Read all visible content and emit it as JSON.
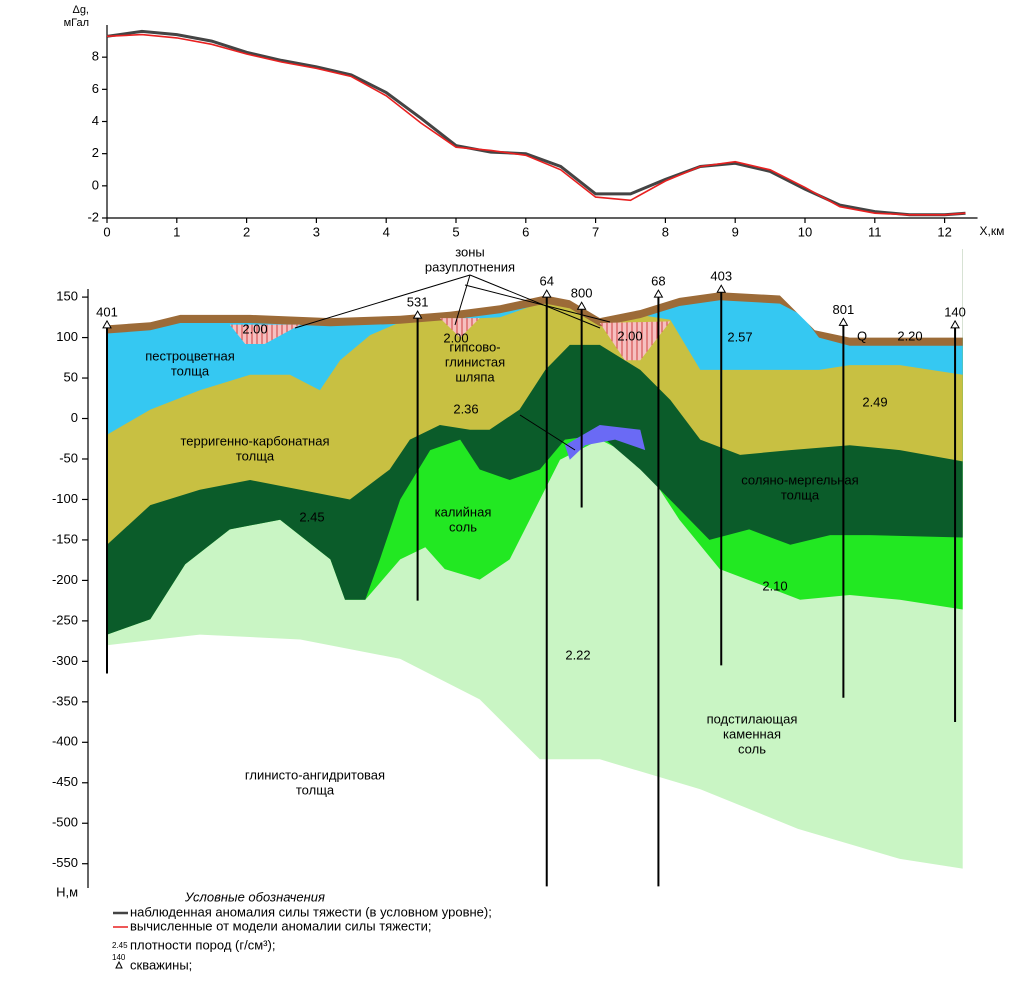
{
  "chart_data": [
    {
      "type": "line",
      "y_label": [
        "Δg,",
        "мГал"
      ],
      "x_label": "X,км",
      "x": [
        0,
        0.5,
        1,
        1.5,
        2,
        2.5,
        3,
        3.5,
        4,
        4.5,
        5,
        5.5,
        6,
        6.5,
        7,
        7.5,
        8,
        8.5,
        9,
        9.5,
        10,
        10.5,
        11,
        11.5,
        12,
        12.3
      ],
      "series": [
        {
          "name": "наблюденная аномалия силы тяжести (в условном уровне);",
          "color": "#444444",
          "values": [
            9.3,
            9.6,
            9.4,
            9.0,
            8.3,
            7.8,
            7.4,
            6.9,
            5.8,
            4.2,
            2.5,
            2.1,
            2.0,
            1.2,
            -0.5,
            -0.5,
            0.4,
            1.2,
            1.4,
            0.9,
            -0.2,
            -1.2,
            -1.6,
            -1.8,
            -1.8,
            -1.7
          ]
        },
        {
          "name": "вычисленные от модели аномалии силы тяжести;",
          "color": "#e82020",
          "values": [
            9.3,
            9.4,
            9.2,
            8.8,
            8.2,
            7.7,
            7.3,
            6.8,
            5.6,
            3.9,
            2.4,
            2.2,
            1.9,
            1.0,
            -0.7,
            -0.9,
            0.3,
            1.2,
            1.5,
            1.0,
            -0.1,
            -1.3,
            -1.7,
            -1.8,
            -1.8,
            -1.7
          ]
        }
      ],
      "xlim": [
        0,
        12.3
      ],
      "xticks": [
        0,
        1,
        2,
        3,
        4,
        5,
        6,
        7,
        8,
        9,
        10,
        11,
        12
      ],
      "ylim": [
        -2,
        10
      ],
      "yticks": [
        -2,
        0,
        2,
        4,
        6,
        8
      ]
    },
    {
      "type": "section",
      "y_label": "Н,м",
      "xlim": [
        0,
        12.3
      ],
      "ylim": [
        -580,
        160
      ],
      "yticks": [
        150,
        100,
        50,
        0,
        -50,
        -100,
        -150,
        -200,
        -250,
        -300,
        -350,
        -400,
        -450,
        -500,
        -550
      ],
      "layers": [
        {
          "color": "#c9f5c4",
          "x": [
            0,
            1.33,
            2.77,
            4.2,
            5.34,
            6.2,
            7.06,
            8.5,
            9.9,
            11.36,
            12.26
          ],
          "y": [
            -280,
            -267,
            -273,
            -297,
            -347,
            -421,
            -421,
            -458,
            -507,
            -544,
            -556
          ]
        },
        {
          "color": "#22e822",
          "x": [
            0,
            0.62,
            1.12,
            1.76,
            2.48,
            3.2,
            3.41,
            3.7,
            4.2,
            4.56,
            4.84,
            5.34,
            5.77,
            6.49,
            7.06,
            7.64,
            8.2,
            8.78,
            9.36,
            9.93,
            10.64,
            11.36,
            12.26
          ],
          "y": [
            -267,
            -248,
            -180,
            -137,
            -125,
            -174,
            -224,
            -224,
            -174,
            -159,
            -186,
            -199,
            -174,
            -51,
            -26,
            -51,
            -125,
            -186,
            -205,
            -224,
            -218,
            -224,
            -236
          ]
        },
        {
          "color": "#0b5c2a",
          "x": [
            0,
            0.62,
            1.12,
            1.76,
            2.48,
            3.2,
            3.41,
            3.7,
            3.91,
            4.2,
            4.63,
            5.06,
            5.34,
            5.77,
            6.2,
            6.56,
            7.06,
            7.64,
            8.2,
            8.63,
            9.2,
            9.79,
            10.36,
            10.93,
            12.26
          ],
          "y": [
            -267,
            -248,
            -180,
            -137,
            -125,
            -174,
            -224,
            -224,
            -174,
            -100,
            -39,
            -26,
            -63,
            -76,
            -63,
            -26,
            -20,
            -63,
            -112,
            -150,
            -137,
            -156,
            -144,
            -144,
            -147
          ]
        },
        {
          "color": "#c8c042",
          "x": [
            0,
            0.62,
            1.33,
            2.05,
            2.77,
            3.48,
            4.05,
            4.34,
            4.77,
            5.2,
            5.48,
            5.91,
            6.28,
            6.63,
            7.06,
            7.64,
            8.07,
            8.5,
            9.07,
            9.79,
            10.64,
            11.36,
            12.26
          ],
          "y": [
            -156,
            -107,
            -88,
            -76,
            -88,
            -100,
            -63,
            -26,
            -8,
            -14,
            -14,
            11,
            60,
            91,
            91,
            60,
            23,
            -26,
            -45,
            -39,
            -33,
            -39,
            -53
          ]
        },
        {
          "color": "#35c8f2",
          "x": [
            0,
            0.62,
            1.33,
            2.05,
            2.62,
            3.05,
            3.34,
            3.77,
            4.2,
            4.91,
            5.63,
            6.28,
            6.63,
            7.06,
            7.64,
            8.07,
            8.5,
            9.07,
            9.64,
            10.2,
            10.64,
            11.36,
            12.26
          ],
          "y": [
            -20,
            11,
            35,
            54,
            54,
            35,
            72,
            103,
            119,
            122,
            125,
            145,
            140,
            118,
            128,
            122,
            60,
            60,
            60,
            60,
            66,
            66,
            54
          ]
        },
        {
          "color": "#9c6b38",
          "x": [
            0,
            0.62,
            1.05,
            2.05,
            3.2,
            4.2,
            4.91,
            5.63,
            6.28,
            6.63,
            7.06,
            7.64,
            8.2,
            8.78,
            9.64,
            9.95,
            10.2,
            10.64,
            12.26
          ],
          "y": [
            105,
            109,
            118,
            118,
            114,
            117,
            122,
            130,
            142,
            136,
            114,
            124,
            139,
            146,
            142,
            128,
            100,
            90,
            90
          ]
        },
        {
          "color": "#ffffff",
          "x": [
            0,
            0.62,
            1.05,
            2.05,
            3.2,
            4.2,
            4.91,
            5.63,
            6.28,
            6.63,
            7.06,
            7.64,
            8.2,
            8.78,
            9.64,
            10.14,
            10.64,
            12.26
          ],
          "y": [
            115,
            119,
            128,
            128,
            124,
            127,
            132,
            140,
            152,
            146,
            124,
            134,
            149,
            156,
            152,
            109,
            100,
            100
          ]
        }
      ],
      "patches": [
        {
          "color": "#f6c0c0",
          "x": [
            1.76,
            2.77,
            2.26,
            1.98
          ],
          "y": [
            116,
            116,
            92,
            92
          ]
        },
        {
          "color": "#f6c0c0",
          "x": [
            4.77,
            5.34,
            5.06
          ],
          "y": [
            124,
            124,
            100
          ]
        },
        {
          "color": "#f6c0c0",
          "x": [
            7.06,
            8.07,
            7.64,
            7.42
          ],
          "y": [
            118,
            120,
            72,
            72
          ]
        },
        {
          "color": "#6a6af5",
          "x": [
            6.56,
            7.06,
            7.64,
            7.71,
            7.28,
            6.85,
            6.63
          ],
          "y": [
            -33,
            -8,
            -14,
            -39,
            -26,
            -33,
            -51
          ]
        }
      ],
      "wells": [
        {
          "label": "401",
          "x": 0,
          "top": 112,
          "bottom": -315
        },
        {
          "label": "531",
          "x": 4.45,
          "top": 124,
          "bottom": -225
        },
        {
          "label": "64",
          "x": 6.3,
          "top": 150,
          "bottom": -578
        },
        {
          "label": "800",
          "x": 6.8,
          "top": 135,
          "bottom": -110
        },
        {
          "label": "68",
          "x": 7.9,
          "top": 150,
          "bottom": -578
        },
        {
          "label": "403",
          "x": 8.8,
          "top": 156,
          "bottom": -305
        },
        {
          "label": "801",
          "x": 10.55,
          "top": 115,
          "bottom": -345
        },
        {
          "label": "140",
          "x": 12.15,
          "top": 112,
          "bottom": -375
        }
      ],
      "annotations": [
        [
          "зоны",
          "разуплотнения"
        ],
        [
          "пестроцветная",
          "толща"
        ],
        [
          "2.00"
        ],
        [
          "2.00"
        ],
        [
          "2.00"
        ],
        [
          "гипсово-",
          "глинистая",
          "шляпа"
        ],
        [
          "2.36"
        ],
        [
          "2.57"
        ],
        [
          "Q"
        ],
        [
          "2.20"
        ],
        [
          "2.49"
        ],
        [
          "терригенно-карбонатная",
          "толща"
        ],
        [
          "соляно-мергельная",
          "толща"
        ],
        [
          "2.45"
        ],
        [
          "калийная",
          "соль"
        ],
        [
          "2.10"
        ],
        [
          "2.22"
        ],
        [
          "подстилающая",
          "каменная",
          "соль"
        ],
        [
          "глинисто-ангидритовая",
          "толща"
        ]
      ]
    }
  ],
  "legend": {
    "title": "Условные обозначения",
    "density_sample": "2.45",
    "density_text": "плотности пород (г/см³);",
    "well_sample": "140",
    "well_text": "скважины;"
  }
}
